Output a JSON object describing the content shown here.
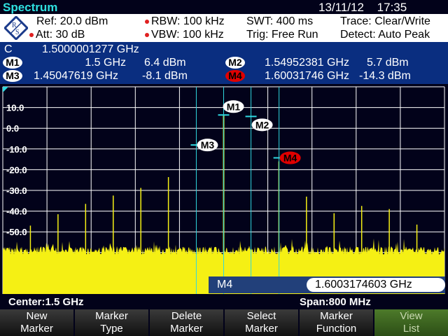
{
  "header": {
    "title": "Spectrum",
    "date": "13/11/12",
    "time": "17:35"
  },
  "settings": {
    "ref": "Ref: 20.0 dBm",
    "att": "Att: 30 dB",
    "rbw": "RBW:  100 kHz",
    "vbw": "VBW:  100 kHz",
    "swt": "SWT:  400 ms",
    "trig": "Trig:  Free Run",
    "trace": "Trace:  Clear/Write",
    "detect": "Detect:  Auto Peak"
  },
  "marker_info": {
    "center_label": "C",
    "center_value": "1.5000001277  GHz",
    "markers": [
      {
        "label": "M1",
        "freq": "1.5  GHz",
        "level": "6.4  dBm"
      },
      {
        "label": "M2",
        "freq": "1.54952381  GHz",
        "level": "5.7  dBm"
      },
      {
        "label": "M3",
        "freq": "1.45047619  GHz",
        "level": "-8.1  dBm"
      },
      {
        "label": "M4",
        "freq": "1.60031746  GHz",
        "level": "-14.3  dBm",
        "active": true
      }
    ]
  },
  "chart_data": {
    "type": "line",
    "ylim": [
      -80,
      20
    ],
    "xlim_ghz": [
      1.1,
      1.9
    ],
    "ytick_labels": [
      "10.0",
      "0.0",
      "-10.0",
      "-20.0",
      "-30.0",
      "-40.0",
      "-50.0"
    ],
    "yticks": [
      10,
      0,
      -10,
      -20,
      -30,
      -40,
      -50
    ],
    "grid": true,
    "trace_color": "#f5f014",
    "marker_line_color": "#2fd8e0",
    "noise_floor_dbm": -57,
    "spurs": [
      {
        "f": 1.15,
        "dbm": -47
      },
      {
        "f": 1.2,
        "dbm": -41.5
      },
      {
        "f": 1.25,
        "dbm": -36.5
      },
      {
        "f": 1.3,
        "dbm": -32.5
      },
      {
        "f": 1.35,
        "dbm": -28.8
      },
      {
        "f": 1.4,
        "dbm": -23.6
      },
      {
        "f": 1.5,
        "dbm": 6.4
      },
      {
        "f": 1.6,
        "dbm": -16
      },
      {
        "f": 1.65,
        "dbm": -33
      },
      {
        "f": 1.7,
        "dbm": -41
      },
      {
        "f": 1.75,
        "dbm": -37.5
      },
      {
        "f": 1.8,
        "dbm": -39
      },
      {
        "f": 1.85,
        "dbm": -46.5
      }
    ],
    "markers": [
      {
        "label": "M1",
        "f": 1.5,
        "dbm": 6.4
      },
      {
        "label": "M2",
        "f": 1.54952381,
        "dbm": 5.7
      },
      {
        "label": "M3",
        "f": 1.45047619,
        "dbm": -8.1
      },
      {
        "label": "M4",
        "f": 1.60031746,
        "dbm": -14.3,
        "active": true
      }
    ]
  },
  "marker_panel": {
    "label": "M4",
    "value": "1.6003174603 GHz"
  },
  "status": {
    "center": "Center:1.5 GHz",
    "span": "Span:800 MHz"
  },
  "softkeys": [
    {
      "l1": "New",
      "l2": "Marker"
    },
    {
      "l1": "Marker",
      "l2": "Type"
    },
    {
      "l1": "Delete",
      "l2": "Marker"
    },
    {
      "l1": "Select",
      "l2": "Marker"
    },
    {
      "l1": "Marker",
      "l2": "Function"
    },
    {
      "l1": "View",
      "l2": "List",
      "active": true
    }
  ]
}
